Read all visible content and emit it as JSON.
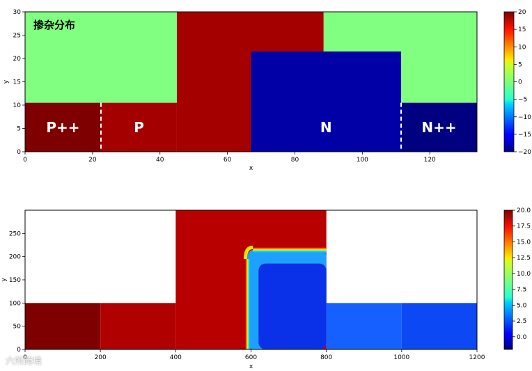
{
  "chart_data": [
    {
      "type": "heatmap",
      "title": "掺杂分布",
      "xlabel": "x",
      "ylabel": "y",
      "xlim": [
        0,
        134
      ],
      "ylim": [
        0,
        30
      ],
      "xticks": [
        "0",
        "20",
        "40",
        "60",
        "80",
        "100",
        "120"
      ],
      "yticks": [
        "0",
        "5",
        "10",
        "15",
        "20",
        "25",
        "30"
      ],
      "colorbar": {
        "range": [
          -20,
          20
        ],
        "colormap": "jet",
        "ticks": [
          "20",
          "15",
          "10",
          "5",
          "0",
          "−5",
          "−10",
          "−15",
          "−20"
        ]
      },
      "regions": [
        {
          "label": "",
          "x0": 0,
          "x1": 45,
          "y0": 10.5,
          "y1": 30,
          "value": 0,
          "color": "#80ff80"
        },
        {
          "label": "",
          "x0": 88.5,
          "x1": 134,
          "y0": 10.5,
          "y1": 30,
          "value": 0,
          "color": "#80ff80"
        },
        {
          "label": "P++",
          "x0": 0,
          "x1": 22.5,
          "y0": 0,
          "y1": 10.5,
          "value": 20,
          "color": "#7f0000"
        },
        {
          "label": "P",
          "x0": 22.5,
          "x1": 45,
          "y0": 0,
          "y1": 10.5,
          "value": 17,
          "color": "#a50000"
        },
        {
          "label": "",
          "x0": 45,
          "x1": 67,
          "y0": 0,
          "y1": 30,
          "value": 17,
          "color": "#a50000"
        },
        {
          "label": "",
          "x0": 67,
          "x1": 88.5,
          "y0": 21.5,
          "y1": 30,
          "value": 17,
          "color": "#a50000"
        },
        {
          "label": "N",
          "x0": 67,
          "x1": 111.5,
          "y0": 0,
          "y1": 21.5,
          "value": -17,
          "color": "#0000a6"
        },
        {
          "label": "N++",
          "x0": 111.5,
          "x1": 134,
          "y0": 0,
          "y1": 10.5,
          "value": -20,
          "color": "#000080"
        }
      ],
      "dashed_boundaries_x": [
        22.5,
        111.5
      ]
    },
    {
      "type": "heatmap",
      "title": "",
      "xlabel": "x",
      "ylabel": "y",
      "xlim": [
        0,
        1200
      ],
      "ylim": [
        0,
        300
      ],
      "xticks": [
        "0",
        "200",
        "400",
        "600",
        "800",
        "1000",
        "1200"
      ],
      "yticks": [
        "0",
        "50",
        "100",
        "150",
        "200",
        "250"
      ],
      "colorbar": {
        "range": [
          -2.0,
          20.0
        ],
        "colormap": "jet",
        "ticks": [
          "20.0",
          "17.5",
          "15.0",
          "12.5",
          "10.0",
          "7.5",
          "5.0",
          "2.5",
          "0.0"
        ]
      },
      "regions": [
        {
          "x0": 0,
          "x1": 200,
          "y0": 0,
          "y1": 100,
          "value": 19.5,
          "color": "#7f0000"
        },
        {
          "x0": 200,
          "x1": 400,
          "y0": 0,
          "y1": 100,
          "value": 17.5,
          "color": "#b00000"
        },
        {
          "x0": 400,
          "x1": 800,
          "y0": 0,
          "y1": 300,
          "value": 17.5,
          "color": "#b80000"
        },
        {
          "x0": 590,
          "x1": 800,
          "y0": 0,
          "y1": 215,
          "value": 2.5,
          "color": "#1ea0ff"
        },
        {
          "x0": 620,
          "x1": 800,
          "y0": 0,
          "y1": 185,
          "value": -0.5,
          "color": "#0a30e8"
        },
        {
          "x0": 800,
          "x1": 1000,
          "y0": 0,
          "y1": 100,
          "value": 0.2,
          "color": "#1560ff"
        },
        {
          "x0": 1000,
          "x1": 1200,
          "y0": 0,
          "y1": 100,
          "value": -0.3,
          "color": "#0d48f5"
        }
      ]
    }
  ],
  "watermark": "六所跨境"
}
